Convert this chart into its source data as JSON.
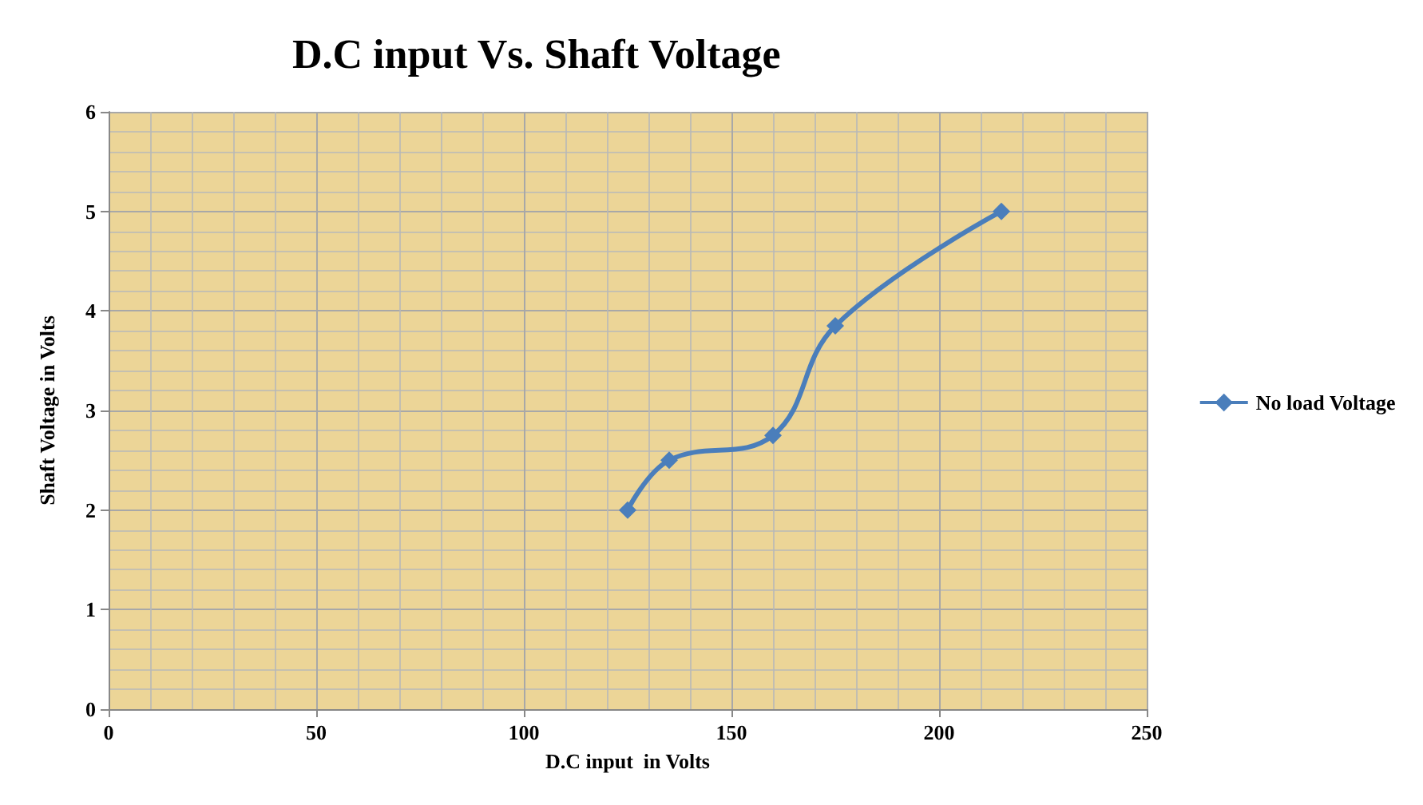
{
  "chart_data": {
    "type": "line",
    "title": "D.C input Vs. Shaft Voltage",
    "xlabel": "D.C input  in Volts",
    "ylabel": "Shaft Voltage in Volts",
    "x": [
      125,
      135,
      160,
      175,
      215
    ],
    "series": [
      {
        "name": "No load Voltage",
        "color": "#4a7ebb",
        "values": [
          2,
          2.5,
          2.75,
          3.85,
          5
        ]
      }
    ],
    "xlim": [
      0,
      250
    ],
    "xticks": [
      0,
      50,
      100,
      150,
      200,
      250
    ],
    "ylim": [
      0,
      6
    ],
    "yticks": [
      0,
      1,
      2,
      3,
      4,
      5,
      6
    ],
    "grid": true,
    "legend": "right",
    "marker": "diamond",
    "line_style": "solid"
  }
}
